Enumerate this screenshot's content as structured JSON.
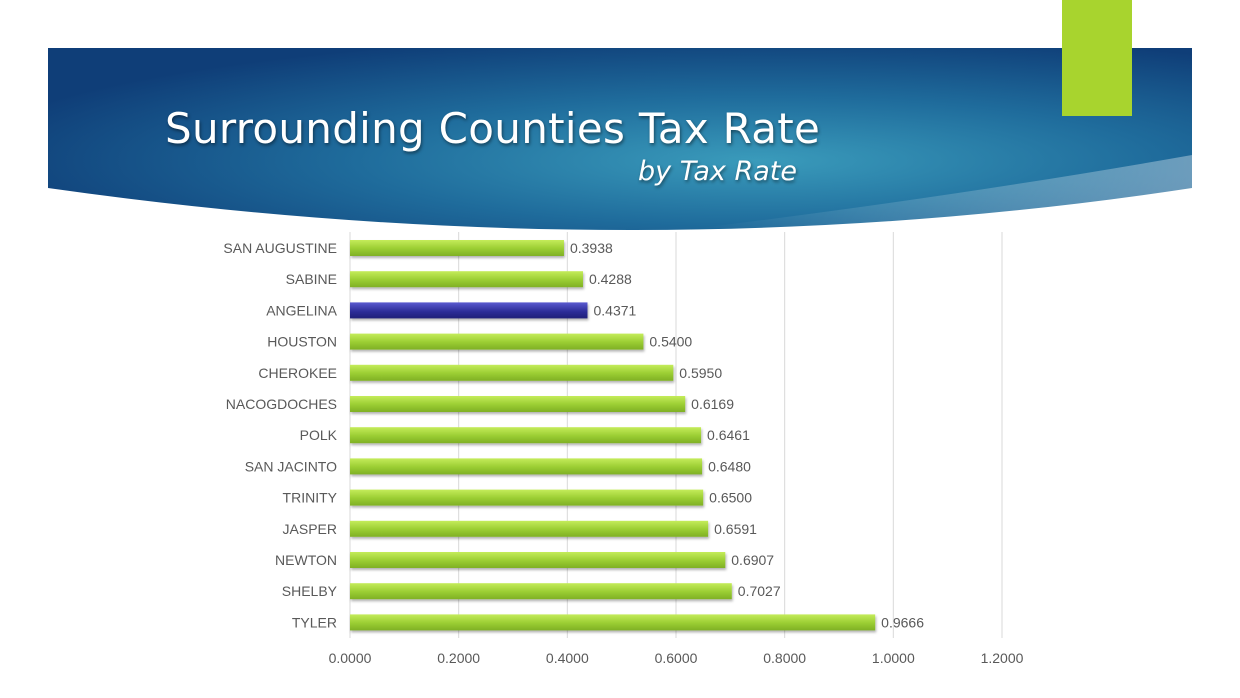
{
  "slide": {
    "title": "Surrounding Counties Tax Rate",
    "subtitle": "by Tax Rate"
  },
  "colors": {
    "banner_dark": "#0f3e78",
    "banner_light": "#2f8fb0",
    "accent": "#a8d42e",
    "bar_default": "#9acd32",
    "bar_highlight": "#2e2e9a",
    "gridline": "#d9d9d9",
    "label_text": "#595959"
  },
  "chart_data": {
    "type": "bar",
    "orientation": "horizontal",
    "categories": [
      "SAN AUGUSTINE",
      "SABINE",
      "ANGELINA",
      "HOUSTON",
      "CHEROKEE",
      "NACOGDOCHES",
      "POLK",
      "SAN JACINTO",
      "TRINITY",
      "JASPER",
      "NEWTON",
      "SHELBY",
      "TYLER"
    ],
    "values": [
      0.3938,
      0.4288,
      0.4371,
      0.54,
      0.595,
      0.6169,
      0.6461,
      0.648,
      0.65,
      0.6591,
      0.6907,
      0.7027,
      0.9666
    ],
    "data_labels": [
      "0.3938",
      "0.4288",
      "0.4371",
      "0.5400",
      "0.5950",
      "0.6169",
      "0.6461",
      "0.6480",
      "0.6500",
      "0.6591",
      "0.6907",
      "0.7027",
      "0.9666"
    ],
    "highlight_category": "ANGELINA",
    "xlim": [
      0,
      1.2
    ],
    "xticks": [
      0,
      0.2,
      0.4,
      0.6,
      0.8,
      1.0,
      1.2
    ],
    "xtick_labels": [
      "0.0000",
      "0.2000",
      "0.4000",
      "0.6000",
      "0.8000",
      "1.0000",
      "1.2000"
    ],
    "grid": "vertical",
    "legend": "none",
    "title": "",
    "xlabel": "",
    "ylabel": ""
  }
}
